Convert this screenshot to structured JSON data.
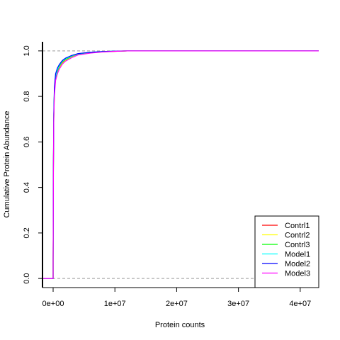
{
  "chart_data": {
    "type": "line",
    "title": "",
    "xlabel": "Protein counts",
    "ylabel": "Cumulative Protein Abundance",
    "xlim": [
      -1720000,
      43000000
    ],
    "ylim": [
      -0.04,
      1.04
    ],
    "x_ticks": [
      {
        "value": 0,
        "label": "0e+00"
      },
      {
        "value": 10000000,
        "label": "1e+07"
      },
      {
        "value": 20000000,
        "label": "2e+07"
      },
      {
        "value": 30000000,
        "label": "3e+07"
      },
      {
        "value": 40000000,
        "label": "4e+07"
      }
    ],
    "y_ticks": [
      {
        "value": 0.0,
        "label": "0.0"
      },
      {
        "value": 0.2,
        "label": "0.2"
      },
      {
        "value": 0.4,
        "label": "0.4"
      },
      {
        "value": 0.6,
        "label": "0.6"
      },
      {
        "value": 0.8,
        "label": "0.8"
      },
      {
        "value": 1.0,
        "label": "1.0"
      }
    ],
    "reference_lines": [
      0,
      1
    ],
    "grid": false,
    "legend_position": "bottom-right",
    "series": [
      {
        "name": "Contrl1",
        "color": "#ff0000",
        "x": [
          -1720000,
          0,
          0,
          50000,
          100000,
          200000,
          400000,
          700000,
          1000000,
          1500000,
          2000000,
          3000000,
          4000000,
          6000000,
          8000000,
          10000000,
          12000000,
          20000000,
          43000000
        ],
        "y": [
          0,
          0,
          0.08,
          0.5,
          0.7,
          0.82,
          0.88,
          0.91,
          0.93,
          0.95,
          0.96,
          0.975,
          0.985,
          0.992,
          0.996,
          0.998,
          1.0,
          1.0,
          1.0
        ]
      },
      {
        "name": "Contrl2",
        "color": "#ffff00",
        "x": [
          -1720000,
          0,
          0,
          50000,
          100000,
          200000,
          400000,
          700000,
          1000000,
          1500000,
          2000000,
          3000000,
          4000000,
          6000000,
          8000000,
          10000000,
          12000000,
          20000000,
          43000000
        ],
        "y": [
          0,
          0,
          0.08,
          0.49,
          0.69,
          0.81,
          0.875,
          0.905,
          0.925,
          0.945,
          0.958,
          0.973,
          0.984,
          0.991,
          0.996,
          0.998,
          1.0,
          1.0,
          1.0
        ]
      },
      {
        "name": "Contrl3",
        "color": "#00ff00",
        "x": [
          -1720000,
          0,
          0,
          50000,
          100000,
          200000,
          400000,
          700000,
          1000000,
          1500000,
          2000000,
          3000000,
          4000000,
          6000000,
          8000000,
          10000000,
          12000000,
          20000000,
          43000000
        ],
        "y": [
          0,
          0,
          0.08,
          0.5,
          0.7,
          0.82,
          0.88,
          0.912,
          0.932,
          0.952,
          0.962,
          0.976,
          0.986,
          0.993,
          0.997,
          0.999,
          1.0,
          1.0,
          1.0
        ]
      },
      {
        "name": "Model1",
        "color": "#00ffff",
        "x": [
          -1720000,
          0,
          0,
          50000,
          100000,
          200000,
          400000,
          700000,
          1000000,
          1500000,
          2000000,
          3000000,
          4000000,
          6000000,
          8000000,
          10000000,
          12000000,
          20000000,
          43000000
        ],
        "y": [
          0,
          0,
          0.08,
          0.5,
          0.71,
          0.83,
          0.89,
          0.918,
          0.936,
          0.955,
          0.965,
          0.978,
          0.987,
          0.994,
          0.997,
          0.999,
          1.0,
          1.0,
          1.0
        ]
      },
      {
        "name": "Model2",
        "color": "#0000ff",
        "x": [
          -1720000,
          0,
          0,
          50000,
          100000,
          200000,
          400000,
          700000,
          1000000,
          1500000,
          2000000,
          3000000,
          4000000,
          6000000,
          8000000,
          10000000,
          12000000,
          20000000,
          43000000
        ],
        "y": [
          0,
          0,
          0.08,
          0.52,
          0.72,
          0.84,
          0.9,
          0.925,
          0.94,
          0.958,
          0.968,
          0.98,
          0.988,
          0.994,
          0.997,
          0.999,
          1.0,
          1.0,
          1.0
        ]
      },
      {
        "name": "Model3",
        "color": "#ff00ff",
        "x": [
          -1720000,
          0,
          0,
          50000,
          100000,
          200000,
          400000,
          700000,
          1000000,
          1500000,
          2000000,
          3000000,
          4000000,
          6000000,
          8000000,
          10000000,
          12000000,
          20000000,
          43000000
        ],
        "y": [
          0,
          0,
          0.08,
          0.48,
          0.68,
          0.8,
          0.87,
          0.9,
          0.92,
          0.942,
          0.955,
          0.97,
          0.982,
          0.99,
          0.995,
          0.998,
          1.0,
          1.0,
          1.0
        ]
      }
    ]
  }
}
